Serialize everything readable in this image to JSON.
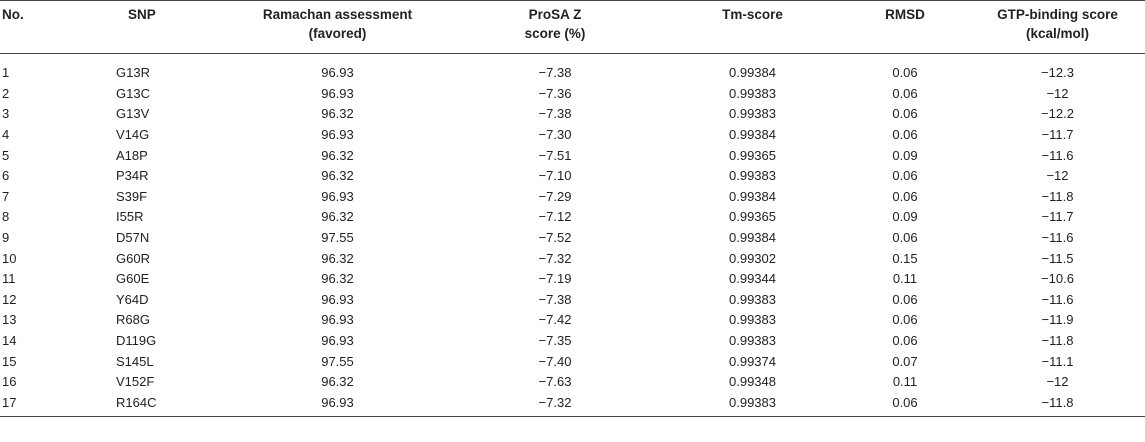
{
  "table": {
    "headers": [
      [
        "No.",
        ""
      ],
      [
        "SNP",
        ""
      ],
      [
        "Ramachan assessment",
        "(favored)"
      ],
      [
        "ProSA Z",
        "score (%)"
      ],
      [
        "Tm-score",
        ""
      ],
      [
        "RMSD",
        ""
      ],
      [
        "GTP-binding score",
        "(kcal/mol)"
      ]
    ],
    "rows": [
      [
        "1",
        "G13R",
        "96.93",
        "−7.38",
        "0.99384",
        "0.06",
        "−12.3"
      ],
      [
        "2",
        "G13C",
        "96.93",
        "−7.36",
        "0.99383",
        "0.06",
        "−12"
      ],
      [
        "3",
        "G13V",
        "96.32",
        "−7.38",
        "0.99383",
        "0.06",
        "−12.2"
      ],
      [
        "4",
        "V14G",
        "96.93",
        "−7.30",
        "0.99384",
        "0.06",
        "−11.7"
      ],
      [
        "5",
        "A18P",
        "96.32",
        "−7.51",
        "0.99365",
        "0.09",
        "−11.6"
      ],
      [
        "6",
        "P34R",
        "96.32",
        "−7.10",
        "0.99383",
        "0.06",
        "−12"
      ],
      [
        "7",
        "S39F",
        "96.93",
        "−7.29",
        "0.99384",
        "0.06",
        "−11.8"
      ],
      [
        "8",
        "I55R",
        "96.32",
        "−7.12",
        "0.99365",
        "0.09",
        "−11.7"
      ],
      [
        "9",
        "D57N",
        "97.55",
        "−7.52",
        "0.99384",
        "0.06",
        "−11.6"
      ],
      [
        "10",
        "G60R",
        "96.32",
        "−7.32",
        "0.99302",
        "0.15",
        "−11.5"
      ],
      [
        "11",
        "G60E",
        "96.32",
        "−7.19",
        "0.99344",
        "0.11",
        "−10.6"
      ],
      [
        "12",
        "Y64D",
        "96.93",
        "−7.38",
        "0.99383",
        "0.06",
        "−11.6"
      ],
      [
        "13",
        "R68G",
        "96.93",
        "−7.42",
        "0.99383",
        "0.06",
        "−11.9"
      ],
      [
        "14",
        "D119G",
        "96.93",
        "−7.35",
        "0.99383",
        "0.06",
        "−11.8"
      ],
      [
        "15",
        "S145L",
        "97.55",
        "−7.40",
        "0.99374",
        "0.07",
        "−11.1"
      ],
      [
        "16",
        "V152F",
        "96.32",
        "−7.63",
        "0.99348",
        "0.11",
        "−12"
      ],
      [
        "17",
        "R164C",
        "96.93",
        "−7.32",
        "0.99383",
        "0.06",
        "−11.8"
      ]
    ]
  }
}
